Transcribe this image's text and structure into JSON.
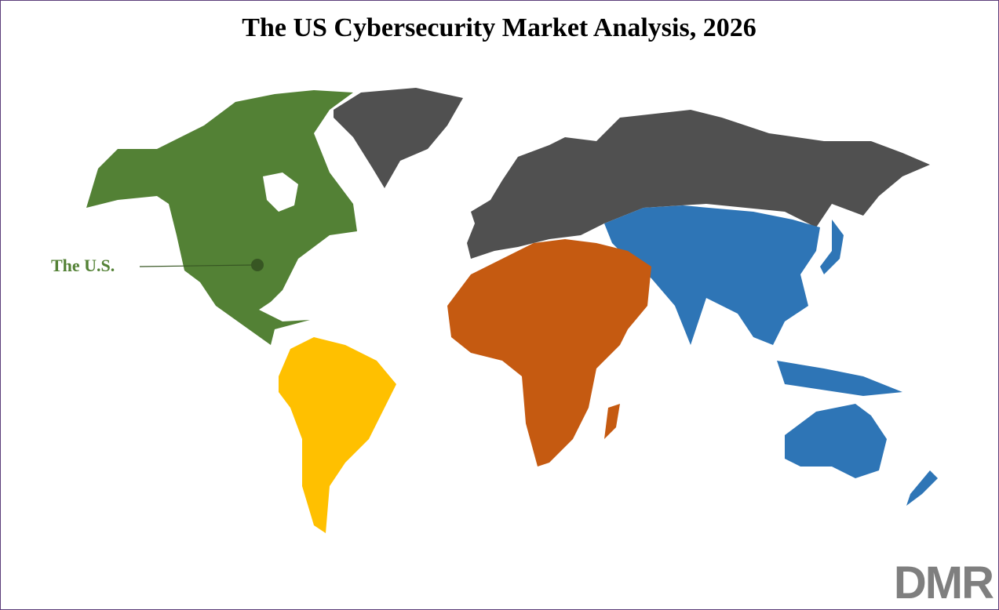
{
  "header": {
    "title": "The US Cybersecurity Market Analysis, 2026"
  },
  "map": {
    "marker_label": "The U.S."
  },
  "logo": {
    "text": "DMR"
  }
}
